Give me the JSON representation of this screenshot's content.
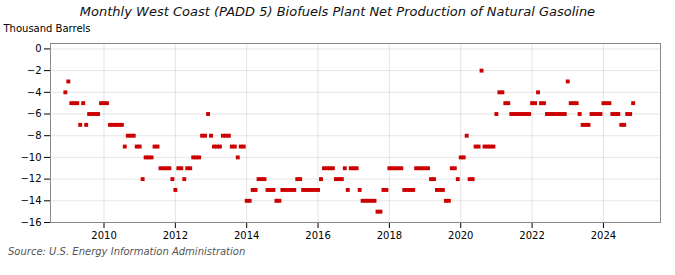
{
  "chart_data": {
    "type": "scatter",
    "title": "Monthly West Coast (PADD 5) Biofuels Plant Net Production of Natural Gasoline",
    "ylabel": "Thousand Barrels",
    "source": "Source: U.S. Energy Information Administration",
    "color": "#cc0000",
    "marker": "square",
    "grid": true,
    "xlim": [
      2008.5,
      2025.6
    ],
    "xticks": [
      2010,
      2012,
      2014,
      2016,
      2018,
      2020,
      2022,
      2024
    ],
    "ylim": [
      -16,
      0.5
    ],
    "yticks": [
      0,
      -2,
      -4,
      -6,
      -8,
      -10,
      -12,
      -14,
      -16
    ],
    "x": [
      2008.917,
      2009.0,
      2009.083,
      2009.167,
      2009.25,
      2009.333,
      2009.417,
      2009.5,
      2009.583,
      2009.667,
      2009.75,
      2009.833,
      2009.917,
      2010.0,
      2010.083,
      2010.167,
      2010.25,
      2010.333,
      2010.417,
      2010.5,
      2010.583,
      2010.667,
      2010.75,
      2010.833,
      2010.917,
      2011.0,
      2011.083,
      2011.167,
      2011.25,
      2011.333,
      2011.417,
      2011.5,
      2011.583,
      2011.667,
      2011.75,
      2011.833,
      2011.917,
      2012.0,
      2012.083,
      2012.167,
      2012.25,
      2012.333,
      2012.417,
      2012.5,
      2012.583,
      2012.667,
      2012.75,
      2012.833,
      2012.917,
      2013.0,
      2013.083,
      2013.167,
      2013.25,
      2013.333,
      2013.417,
      2013.5,
      2013.583,
      2013.667,
      2013.75,
      2013.833,
      2013.917,
      2014.0,
      2014.083,
      2014.167,
      2014.25,
      2014.333,
      2014.417,
      2014.5,
      2014.583,
      2014.667,
      2014.75,
      2014.833,
      2014.917,
      2015.0,
      2015.083,
      2015.167,
      2015.25,
      2015.333,
      2015.417,
      2015.5,
      2015.583,
      2015.667,
      2015.75,
      2015.833,
      2015.917,
      2016.0,
      2016.083,
      2016.167,
      2016.25,
      2016.333,
      2016.417,
      2016.5,
      2016.583,
      2016.667,
      2016.75,
      2016.833,
      2016.917,
      2017.0,
      2017.083,
      2017.167,
      2017.25,
      2017.333,
      2017.417,
      2017.5,
      2017.583,
      2017.667,
      2017.75,
      2017.833,
      2017.917,
      2018.0,
      2018.083,
      2018.167,
      2018.25,
      2018.333,
      2018.417,
      2018.5,
      2018.583,
      2018.667,
      2018.75,
      2018.833,
      2018.917,
      2019.0,
      2019.083,
      2019.167,
      2019.25,
      2019.333,
      2019.417,
      2019.5,
      2019.583,
      2019.667,
      2019.75,
      2019.833,
      2019.917,
      2020.0,
      2020.083,
      2020.167,
      2020.25,
      2020.333,
      2020.417,
      2020.5,
      2020.583,
      2020.667,
      2020.75,
      2020.833,
      2020.917,
      2021.0,
      2021.083,
      2021.167,
      2021.25,
      2021.333,
      2021.417,
      2021.5,
      2021.583,
      2021.667,
      2021.75,
      2021.833,
      2021.917,
      2022.0,
      2022.083,
      2022.167,
      2022.25,
      2022.333,
      2022.417,
      2022.5,
      2022.583,
      2022.667,
      2022.75,
      2022.833,
      2022.917,
      2023.0,
      2023.083,
      2023.167,
      2023.25,
      2023.333,
      2023.417,
      2023.5,
      2023.583,
      2023.667,
      2023.75,
      2023.833,
      2023.917,
      2024.0,
      2024.083,
      2024.167,
      2024.25,
      2024.333,
      2024.417,
      2024.5,
      2024.583,
      2024.667,
      2024.75,
      2024.833
    ],
    "values": [
      -4.0,
      -3.0,
      -5.0,
      -5.0,
      -5.0,
      -7.0,
      -5.0,
      -7.0,
      -6.0,
      -6.0,
      -6.0,
      -6.0,
      -5.0,
      -5.0,
      -5.0,
      -7.0,
      -7.0,
      -7.0,
      -7.0,
      -7.0,
      -9.0,
      -8.0,
      -8.0,
      -8.0,
      -9.0,
      -9.0,
      -12.0,
      -10.0,
      -10.0,
      -10.0,
      -9.0,
      -9.0,
      -11.0,
      -11.0,
      -11.0,
      -11.0,
      -12.0,
      -13.0,
      -11.0,
      -11.0,
      -12.0,
      -11.0,
      -11.0,
      -10.0,
      -10.0,
      -10.0,
      -8.0,
      -8.0,
      -6.0,
      -8.0,
      -9.0,
      -9.0,
      -9.0,
      -8.0,
      -8.0,
      -8.0,
      -9.0,
      -9.0,
      -10.0,
      -9.0,
      -9.0,
      -14.0,
      -14.0,
      -13.0,
      -13.0,
      -12.0,
      -12.0,
      -12.0,
      -13.0,
      -13.0,
      -13.0,
      -14.0,
      -14.0,
      -13.0,
      -13.0,
      -13.0,
      -13.0,
      -13.0,
      -12.0,
      -12.0,
      -13.0,
      -13.0,
      -13.0,
      -13.0,
      -13.0,
      -13.0,
      -12.0,
      -11.0,
      -11.0,
      -11.0,
      -11.0,
      -12.0,
      -12.0,
      -12.0,
      -11.0,
      -13.0,
      -11.0,
      -11.0,
      -11.0,
      -13.0,
      -14.0,
      -14.0,
      -14.0,
      -14.0,
      -14.0,
      -15.0,
      -15.0,
      -13.0,
      -13.0,
      -11.0,
      -11.0,
      -11.0,
      -11.0,
      -11.0,
      -13.0,
      -13.0,
      -13.0,
      -13.0,
      -11.0,
      -11.0,
      -11.0,
      -11.0,
      -11.0,
      -12.0,
      -12.0,
      -13.0,
      -13.0,
      -13.0,
      -14.0,
      -14.0,
      -11.0,
      -11.0,
      -12.0,
      -10.0,
      -10.0,
      -8.0,
      -12.0,
      -12.0,
      -9.0,
      -9.0,
      -2.0,
      -9.0,
      -9.0,
      -9.0,
      -9.0,
      -6.0,
      -4.0,
      -4.0,
      -5.0,
      -5.0,
      -6.0,
      -6.0,
      -6.0,
      -6.0,
      -6.0,
      -6.0,
      -6.0,
      -5.0,
      -5.0,
      -4.0,
      -5.0,
      -5.0,
      -6.0,
      -6.0,
      -6.0,
      -6.0,
      -6.0,
      -6.0,
      -6.0,
      -3.0,
      -5.0,
      -5.0,
      -5.0,
      -6.0,
      -7.0,
      -7.0,
      -7.0,
      -6.0,
      -6.0,
      -6.0,
      -6.0,
      -5.0,
      -5.0,
      -5.0,
      -6.0,
      -6.0,
      -6.0,
      -7.0,
      -7.0,
      -6.0,
      -6.0,
      -5.0
    ]
  }
}
